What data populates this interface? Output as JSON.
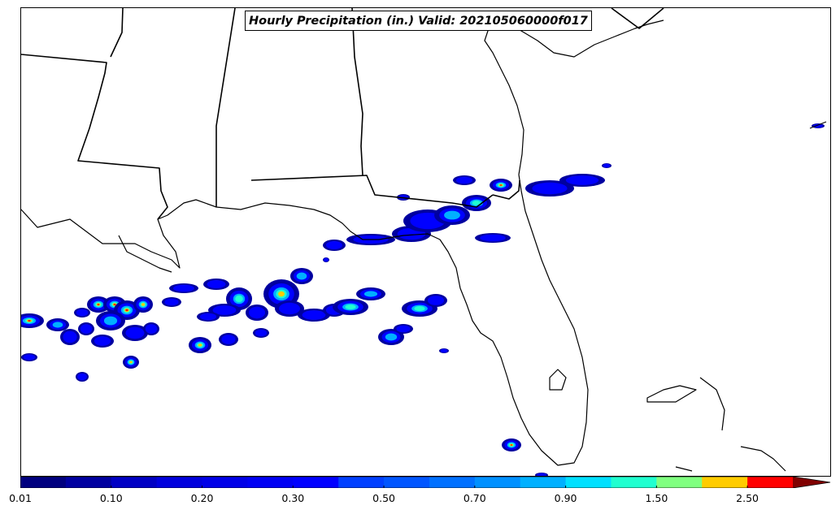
{
  "map": {
    "title": "Hourly Precipitation (in.) Valid: 202105060000f017",
    "boundaries_color": "#000000",
    "variable": "hourly precipitation",
    "unit": "in."
  },
  "colorbar": {
    "ticks": [
      "0.01",
      "0.10",
      "0.20",
      "0.30",
      "0.50",
      "0.70",
      "0.90",
      "1.50",
      "2.50"
    ],
    "levels": [
      0.01,
      0.05,
      0.1,
      0.15,
      0.2,
      0.25,
      0.3,
      0.4,
      0.5,
      0.6,
      0.7,
      0.8,
      0.9,
      1.0,
      1.5,
      2.0,
      2.5
    ],
    "colors": [
      "#00007f",
      "#0000a0",
      "#0000c4",
      "#0000dd",
      "#0000e8",
      "#0000f4",
      "#0000ff",
      "#003fff",
      "#0055ff",
      "#0070ff",
      "#0090ff",
      "#00b0ff",
      "#00e0ff",
      "#20ffd0",
      "#80ff80",
      "#ffcc00",
      "#ff0000"
    ],
    "extend_color": "#800000",
    "extend": "max"
  }
}
